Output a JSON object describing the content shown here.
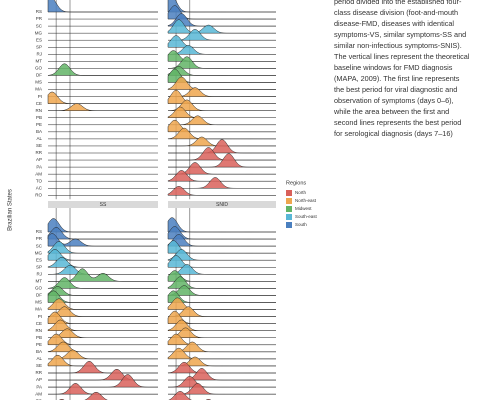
{
  "chart_data": {
    "type": "ridgeline",
    "ylabel": "Brazilian States",
    "legend_title": "Regions",
    "series": [
      {
        "name": "North",
        "color": "#d9605a"
      },
      {
        "name": "North-east",
        "color": "#eea64e"
      },
      {
        "name": "Midwest",
        "color": "#62b466"
      },
      {
        "name": "South-east",
        "color": "#58b7d6"
      },
      {
        "name": "South",
        "color": "#4a7fbf"
      }
    ],
    "states": [
      "RS",
      "PR",
      "SC",
      "MG",
      "ES",
      "SP",
      "RJ",
      "MT",
      "GO",
      "DF",
      "MS",
      "MA",
      "PI",
      "CE",
      "RN",
      "PB",
      "PE",
      "BA",
      "AL",
      "SE",
      "RR",
      "AP",
      "PA",
      "AM",
      "TO",
      "AC",
      "RO"
    ],
    "state_regions": [
      4,
      4,
      4,
      3,
      3,
      3,
      3,
      2,
      2,
      2,
      2,
      1,
      1,
      1,
      1,
      1,
      1,
      1,
      1,
      1,
      0,
      0,
      0,
      0,
      0,
      0,
      0
    ],
    "xlim": [
      0,
      80
    ],
    "vlines": [
      6,
      16
    ],
    "panels": [
      {
        "ridges": [
          [
            [
              2,
              1.6
            ]
          ],
          [],
          [],
          [],
          [],
          [],
          [],
          [],
          [],
          [
            [
              12,
              1.3
            ]
          ],
          [],
          [],
          [],
          [
            [
              3,
              1.3
            ]
          ],
          [
            [
              21,
              0.8
            ]
          ],
          [],
          [],
          [],
          [],
          [],
          [],
          [],
          [],
          [],
          [],
          [],
          []
        ]
      },
      {
        "ridges": [
          [
            [
              2,
              2
            ]
          ],
          [
            [
              5,
              1.5
            ]
          ],
          [
            [
              10,
              1.4
            ]
          ],
          [
            [
              8,
              1.5
            ],
            [
              30,
              0.9
            ]
          ],
          [
            [
              20,
              1.2
            ]
          ],
          [
            [
              6,
              1.3
            ]
          ],
          [
            [
              15,
              1
            ]
          ],
          [
            [
              4,
              1.2
            ]
          ],
          [
            [
              14,
              1.3
            ]
          ],
          [
            [
              8,
              1
            ]
          ],
          [
            [
              5,
              1.5
            ]
          ],
          [
            [
              10,
              1.4
            ]
          ],
          [
            [
              20,
              1
            ]
          ],
          [
            [
              6,
              1.5
            ]
          ],
          [
            [
              14,
              1.2
            ]
          ],
          [
            [
              9,
              1.2
            ]
          ],
          [
            [
              22,
              1
            ]
          ],
          [
            [
              5,
              1.3
            ]
          ],
          [
            [
              12,
              1.2
            ]
          ],
          [
            [
              25,
              1
            ]
          ],
          [
            [
              40,
              1.5
            ]
          ],
          [
            [
              30,
              1.4
            ]
          ],
          [
            [
              45,
              1.5
            ]
          ],
          [
            [
              20,
              1.3
            ]
          ],
          [
            [
              10,
              1.2
            ]
          ],
          [
            [
              35,
              1.2
            ]
          ],
          [
            [
              8,
              1
            ]
          ]
        ]
      },
      {
        "name": "SS",
        "ridges": [
          [
            [
              4,
              1.5
            ]
          ],
          [
            [
              6,
              1.3
            ]
          ],
          [
            [
              3,
              1.4
            ],
            [
              20,
              0.8
            ]
          ],
          [
            [
              8,
              1.3
            ]
          ],
          [
            [
              5,
              1.2
            ]
          ],
          [
            [
              10,
              1.1
            ]
          ],
          [
            [
              16,
              1
            ]
          ],
          [
            [
              25,
              1.4
            ],
            [
              40,
              0.9
            ]
          ],
          [
            [
              12,
              1.2
            ]
          ],
          [
            [
              7,
              1
            ]
          ],
          [
            [
              4,
              1.3
            ]
          ],
          [
            [
              8,
              1.2
            ]
          ],
          [
            [
              12,
              1.1
            ]
          ],
          [
            [
              5,
              1.3
            ]
          ],
          [
            [
              9,
              1.2
            ]
          ],
          [
            [
              14,
              1
            ]
          ],
          [
            [
              6,
              1.2
            ]
          ],
          [
            [
              11,
              1.1
            ]
          ],
          [
            [
              18,
              1
            ]
          ],
          [
            [
              7,
              1.2
            ]
          ],
          [
            [
              30,
              1.3
            ]
          ],
          [
            [
              50,
              1.2
            ]
          ],
          [
            [
              58,
              1.4
            ]
          ],
          [
            [
              20,
              1.2
            ]
          ],
          [
            [
              35,
              1
            ]
          ],
          [
            [
              10,
              1
            ]
          ],
          [
            [
              15,
              1
            ]
          ]
        ]
      },
      {
        "name": "SNID",
        "ridges": [
          [
            [
              3,
              1.6
            ]
          ],
          [
            [
              5,
              1.4
            ]
          ],
          [
            [
              8,
              1.3
            ]
          ],
          [
            [
              4,
              1.4
            ]
          ],
          [
            [
              10,
              1.2
            ]
          ],
          [
            [
              6,
              1.3
            ]
          ],
          [
            [
              14,
              1.1
            ]
          ],
          [
            [
              5,
              1.2
            ]
          ],
          [
            [
              9,
              1.3
            ]
          ],
          [
            [
              12,
              1.1
            ]
          ],
          [
            [
              4,
              1.3
            ]
          ],
          [
            [
              7,
              1.3
            ]
          ],
          [
            [
              15,
              1.1
            ]
          ],
          [
            [
              5,
              1.4
            ]
          ],
          [
            [
              10,
              1.2
            ]
          ],
          [
            [
              13,
              1.1
            ]
          ],
          [
            [
              6,
              1.2
            ]
          ],
          [
            [
              18,
              1.1
            ]
          ],
          [
            [
              8,
              1.2
            ]
          ],
          [
            [
              20,
              1
            ]
          ],
          [
            [
              12,
              1.2
            ]
          ],
          [
            [
              25,
              1.3
            ]
          ],
          [
            [
              16,
              1.2
            ]
          ],
          [
            [
              22,
              1.2
            ]
          ],
          [
            [
              9,
              1.1
            ]
          ],
          [
            [
              30,
              1
            ]
          ],
          [
            [
              11,
              1
            ]
          ]
        ]
      }
    ],
    "caption_lines": [
      "period divided into the established four-",
      "class disease division (foot-and-mouth",
      "disease-FMD, diseases with identical",
      "symptoms-VS, similar symptoms-SS and",
      "similar non-infectious symptoms-SNIS).",
      "The vertical lines represent the theoretical",
      "baseline windows for FMD diagnosis",
      "(MAPA, 2009). The first line represents",
      "the best period for viral diagnostic and",
      "observation of symptoms (days 0–6),",
      "while the area between the first and",
      "second lines represents the best period",
      "for serological diagnosis (days 7–16)"
    ]
  }
}
